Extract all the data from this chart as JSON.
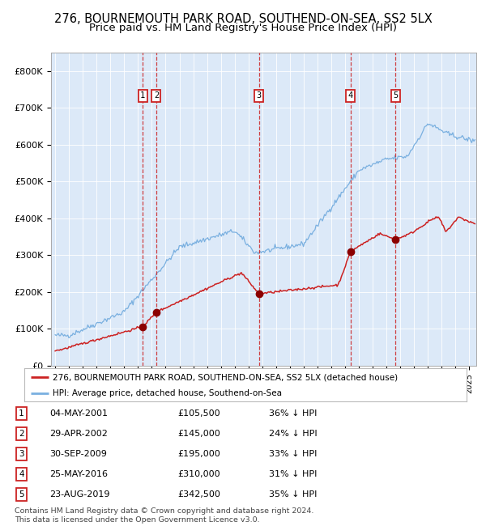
{
  "title1": "276, BOURNEMOUTH PARK ROAD, SOUTHEND-ON-SEA, SS2 5LX",
  "title2": "Price paid vs. HM Land Registry's House Price Index (HPI)",
  "ylim": [
    0,
    850000
  ],
  "yticks": [
    0,
    100000,
    200000,
    300000,
    400000,
    500000,
    600000,
    700000,
    800000
  ],
  "ytick_labels": [
    "£0",
    "£100K",
    "£200K",
    "£300K",
    "£400K",
    "£500K",
    "£600K",
    "£700K",
    "£800K"
  ],
  "xlim_start": 1994.7,
  "xlim_end": 2025.5,
  "plot_bg_color": "#dce9f8",
  "line_color_hpi": "#7ab0e0",
  "line_color_price": "#cc2222",
  "sale_dates_x": [
    2001.34,
    2002.32,
    2009.75,
    2016.39,
    2019.64
  ],
  "sale_prices_y": [
    105500,
    145000,
    195000,
    310000,
    342500
  ],
  "sale_labels": [
    "1",
    "2",
    "3",
    "4",
    "5"
  ],
  "vline_color": "#cc2222",
  "marker_color": "#8b0000",
  "legend_label_red": "276, BOURNEMOUTH PARK ROAD, SOUTHEND-ON-SEA, SS2 5LX (detached house)",
  "legend_label_blue": "HPI: Average price, detached house, Southend-on-Sea",
  "table_rows": [
    [
      "1",
      "04-MAY-2001",
      "£105,500",
      "36% ↓ HPI"
    ],
    [
      "2",
      "29-APR-2002",
      "£145,000",
      "24% ↓ HPI"
    ],
    [
      "3",
      "30-SEP-2009",
      "£195,000",
      "33% ↓ HPI"
    ],
    [
      "4",
      "25-MAY-2016",
      "£310,000",
      "31% ↓ HPI"
    ],
    [
      "5",
      "23-AUG-2019",
      "£342,500",
      "35% ↓ HPI"
    ]
  ],
  "footer": "Contains HM Land Registry data © Crown copyright and database right 2024.\nThis data is licensed under the Open Government Licence v3.0.",
  "title_fontsize": 10.5,
  "subtitle_fontsize": 9.5
}
